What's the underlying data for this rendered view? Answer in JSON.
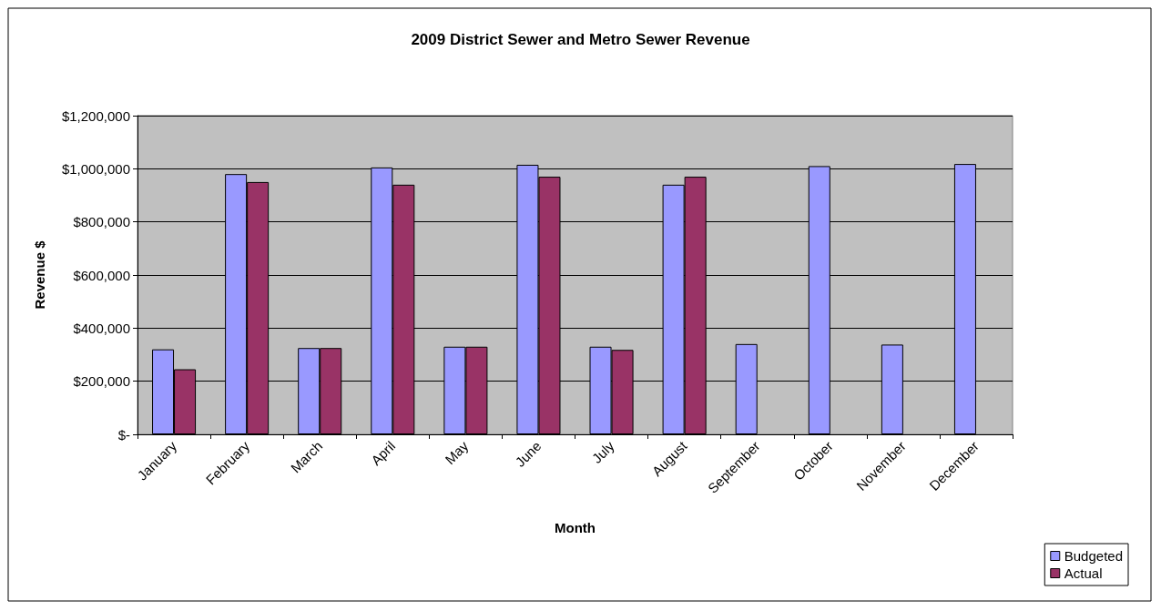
{
  "chart_data": {
    "type": "bar",
    "title": "2009 District Sewer and Metro Sewer Revenue",
    "xlabel": "Month",
    "ylabel": "Revenue $",
    "categories": [
      "January",
      "February",
      "March",
      "April",
      "May",
      "June",
      "July",
      "August",
      "September",
      "October",
      "November",
      "December"
    ],
    "series": [
      {
        "name": "Budgeted",
        "color": "#9999ff",
        "values": [
          320000,
          980000,
          325000,
          1005000,
          330000,
          1015000,
          330000,
          940000,
          340000,
          1010000,
          338000,
          1018000
        ]
      },
      {
        "name": "Actual",
        "color": "#993366",
        "values": [
          245000,
          950000,
          325000,
          940000,
          330000,
          970000,
          318000,
          970000,
          null,
          null,
          null,
          null
        ]
      }
    ],
    "ylim": [
      0,
      1200000
    ],
    "yticks": [
      {
        "value": 0,
        "label": "$-"
      },
      {
        "value": 200000,
        "label": "$200,000"
      },
      {
        "value": 400000,
        "label": "$400,000"
      },
      {
        "value": 600000,
        "label": "$600,000"
      },
      {
        "value": 800000,
        "label": "$800,000"
      },
      {
        "value": 1000000,
        "label": "$1,000,000"
      },
      {
        "value": 1200000,
        "label": "$1,200,000"
      }
    ],
    "grid": "y",
    "legend": "bottom right"
  }
}
